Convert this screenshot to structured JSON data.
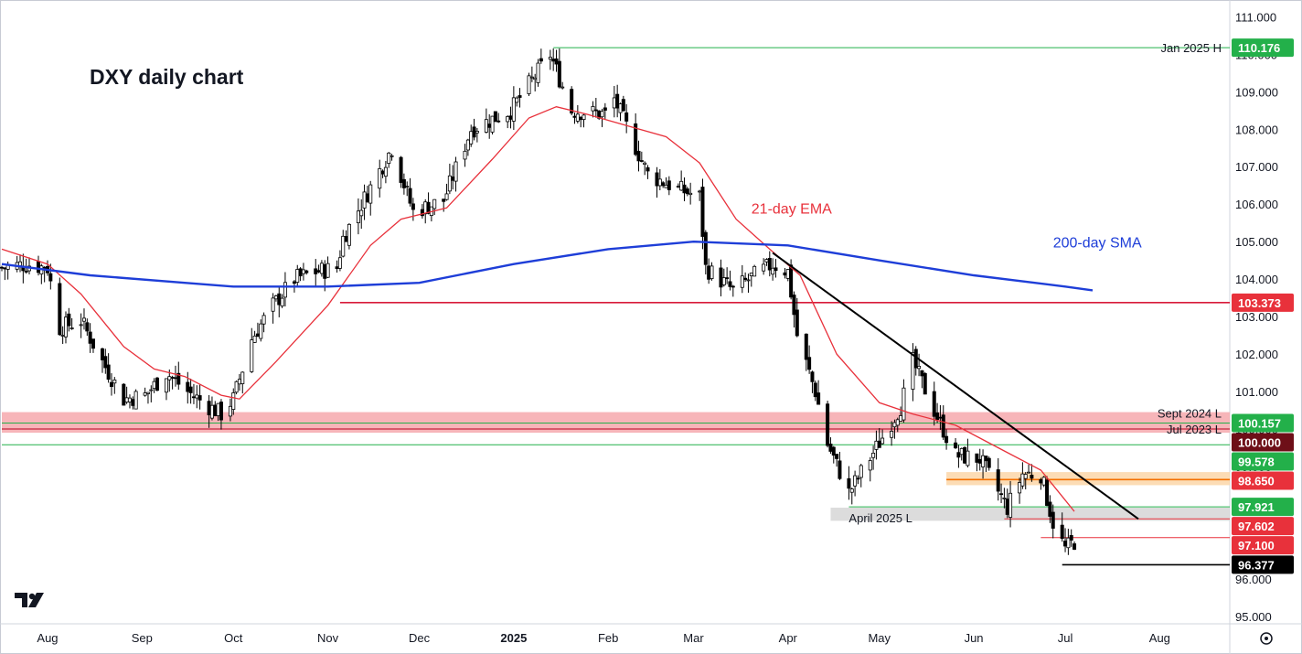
{
  "chart_data": {
    "type": "candlestick",
    "title": "DXY daily chart",
    "y_range": [
      94.8,
      111.4
    ],
    "y_ticks": [
      95,
      96,
      97,
      98,
      99,
      100,
      101,
      102,
      103,
      104,
      105,
      106,
      107,
      108,
      109,
      110,
      111
    ],
    "y_tick_labels": [
      "95.000",
      "96.000",
      "97.000",
      "98.000",
      "99.000",
      "100.000",
      "101.000",
      "102.000",
      "103.000",
      "104.000",
      "105.000",
      "106.000",
      "107.000",
      "108.000",
      "109.000",
      "110.000",
      "111.000"
    ],
    "x_range": [
      "2024-07-17",
      "2025-08-24"
    ],
    "x_ticks": [
      {
        "date": "2024-08-01",
        "label": "Aug",
        "bold": false
      },
      {
        "date": "2024-09-01",
        "label": "Sep",
        "bold": false
      },
      {
        "date": "2024-10-01",
        "label": "Oct",
        "bold": false
      },
      {
        "date": "2024-11-01",
        "label": "Nov",
        "bold": false
      },
      {
        "date": "2024-12-01",
        "label": "Dec",
        "bold": false
      },
      {
        "date": "2025-01-01",
        "label": "2025",
        "bold": true
      },
      {
        "date": "2025-02-01",
        "label": "Feb",
        "bold": false
      },
      {
        "date": "2025-03-01",
        "label": "Mar",
        "bold": false
      },
      {
        "date": "2025-04-01",
        "label": "Apr",
        "bold": false
      },
      {
        "date": "2025-05-01",
        "label": "May",
        "bold": false
      },
      {
        "date": "2025-06-01",
        "label": "Jun",
        "bold": false
      },
      {
        "date": "2025-07-01",
        "label": "Jul",
        "bold": false
      },
      {
        "date": "2025-08-01",
        "label": "Aug",
        "bold": false
      }
    ],
    "close_path": [
      [
        "2024-07-17",
        104.3
      ],
      [
        "2024-07-25",
        104.4
      ],
      [
        "2024-08-01",
        104.3
      ],
      [
        "2024-08-05",
        102.7
      ],
      [
        "2024-08-12",
        102.9
      ],
      [
        "2024-08-19",
        101.8
      ],
      [
        "2024-08-26",
        100.8
      ],
      [
        "2024-09-02",
        100.9
      ],
      [
        "2024-09-09",
        101.5
      ],
      [
        "2024-09-16",
        101.0
      ],
      [
        "2024-09-23",
        100.6
      ],
      [
        "2024-09-27",
        100.4
      ],
      [
        "2024-10-01",
        100.8
      ],
      [
        "2024-10-07",
        102.4
      ],
      [
        "2024-10-14",
        103.3
      ],
      [
        "2024-10-21",
        104.0
      ],
      [
        "2024-10-28",
        104.2
      ],
      [
        "2024-11-04",
        104.3
      ],
      [
        "2024-11-06",
        105.1
      ],
      [
        "2024-11-12",
        106.0
      ],
      [
        "2024-11-22",
        107.5
      ],
      [
        "2024-11-29",
        105.8
      ],
      [
        "2024-12-09",
        106.1
      ],
      [
        "2024-12-18",
        108.0
      ],
      [
        "2024-12-31",
        108.5
      ],
      [
        "2025-01-13",
        110.0
      ],
      [
        "2025-01-20",
        108.5
      ],
      [
        "2025-01-31",
        108.4
      ],
      [
        "2025-02-03",
        108.8
      ],
      [
        "2025-02-14",
        106.8
      ],
      [
        "2025-02-24",
        106.4
      ],
      [
        "2025-03-03",
        106.2
      ],
      [
        "2025-03-05",
        104.3
      ],
      [
        "2025-03-14",
        103.7
      ],
      [
        "2025-03-21",
        104.1
      ],
      [
        "2025-03-27",
        104.4
      ],
      [
        "2025-04-01",
        104.2
      ],
      [
        "2025-04-04",
        102.5
      ],
      [
        "2025-04-10",
        101.0
      ],
      [
        "2025-04-14",
        99.6
      ],
      [
        "2025-04-21",
        98.3
      ],
      [
        "2025-04-30",
        99.5
      ],
      [
        "2025-05-08",
        100.6
      ],
      [
        "2025-05-12",
        101.8
      ],
      [
        "2025-05-19",
        100.5
      ],
      [
        "2025-05-26",
        99.3
      ],
      [
        "2025-06-03",
        99.2
      ],
      [
        "2025-06-12",
        97.9
      ],
      [
        "2025-06-17",
        98.8
      ],
      [
        "2025-06-23",
        98.8
      ],
      [
        "2025-06-27",
        97.5
      ],
      [
        "2025-07-01",
        96.8
      ],
      [
        "2025-07-04",
        97.0
      ]
    ],
    "series": [
      {
        "name": "21-day EMA",
        "color": "#e8313b",
        "points": [
          [
            "2024-07-17",
            104.8
          ],
          [
            "2024-08-01",
            104.4
          ],
          [
            "2024-08-12",
            103.6
          ],
          [
            "2024-08-26",
            102.2
          ],
          [
            "2024-09-05",
            101.6
          ],
          [
            "2024-09-15",
            101.4
          ],
          [
            "2024-09-27",
            100.9
          ],
          [
            "2024-10-03",
            100.8
          ],
          [
            "2024-10-15",
            101.8
          ],
          [
            "2024-11-01",
            103.3
          ],
          [
            "2024-11-15",
            104.9
          ],
          [
            "2024-11-25",
            105.6
          ],
          [
            "2024-12-10",
            105.9
          ],
          [
            "2024-12-25",
            107.2
          ],
          [
            "2025-01-06",
            108.3
          ],
          [
            "2025-01-15",
            108.6
          ],
          [
            "2025-01-25",
            108.4
          ],
          [
            "2025-02-07",
            108.1
          ],
          [
            "2025-02-20",
            107.8
          ],
          [
            "2025-03-03",
            107.1
          ],
          [
            "2025-03-15",
            105.6
          ],
          [
            "2025-03-26",
            104.8
          ],
          [
            "2025-04-05",
            104.1
          ],
          [
            "2025-04-17",
            102.0
          ],
          [
            "2025-05-01",
            100.7
          ],
          [
            "2025-05-12",
            100.4
          ],
          [
            "2025-05-26",
            100.1
          ],
          [
            "2025-06-09",
            99.5
          ],
          [
            "2025-06-23",
            98.9
          ],
          [
            "2025-06-30",
            98.2
          ],
          [
            "2025-07-04",
            97.8
          ]
        ]
      },
      {
        "name": "200-day SMA",
        "color": "#1e3ed8",
        "points": [
          [
            "2024-07-17",
            104.4
          ],
          [
            "2024-08-15",
            104.1
          ],
          [
            "2024-09-15",
            103.9
          ],
          [
            "2024-10-01",
            103.8
          ],
          [
            "2024-11-01",
            103.8
          ],
          [
            "2024-12-01",
            103.9
          ],
          [
            "2025-01-01",
            104.4
          ],
          [
            "2025-02-01",
            104.8
          ],
          [
            "2025-03-01",
            105.0
          ],
          [
            "2025-04-01",
            104.9
          ],
          [
            "2025-05-01",
            104.5
          ],
          [
            "2025-06-01",
            104.1
          ],
          [
            "2025-07-01",
            103.8
          ],
          [
            "2025-07-10",
            103.7
          ]
        ]
      }
    ],
    "levels": [
      {
        "label": "Jan 2025 H",
        "value": 110.176,
        "badge": "110.176",
        "badge_color": "#23b04a",
        "line_color": "#23b04a",
        "from": "2025-01-14"
      },
      {
        "label": "",
        "value": 103.373,
        "badge": "103.373",
        "badge_color": "#e8313b",
        "line_color": "#d81b3a",
        "from": "2024-11-05"
      },
      {
        "label": "Sept 2024 L",
        "value": 100.157,
        "badge": "100.157",
        "badge_color": "#23b04a",
        "line_color": "#23b04a",
        "from": "2024-07-17"
      },
      {
        "label": "Jul 2023 L",
        "value": 100.0,
        "badge": "100.000",
        "badge_color": "#6e0f18",
        "line_color": "#b7001e",
        "from": "2024-07-17"
      },
      {
        "label": "",
        "value": 99.578,
        "badge": "99.578",
        "badge_color": "#23b04a",
        "line_color": "#23b04a",
        "from": "2024-07-17"
      },
      {
        "label": "",
        "value": 98.65,
        "badge": "98.650",
        "badge_color": "#e8313b",
        "line_color": "#f46f00",
        "from": "2025-05-23"
      },
      {
        "label": "",
        "value": 97.921,
        "badge": "97.921",
        "badge_color": "#23b04a",
        "line_color": "#23b04a",
        "from": "2025-04-21"
      },
      {
        "label": "April 2025 L",
        "value": 97.602,
        "badge": "97.602",
        "badge_color": "#e8313b",
        "line_color": "#e8313b",
        "from": "2025-06-11"
      },
      {
        "label": "",
        "value": 97.1,
        "badge": "97.100",
        "badge_color": "#e8313b",
        "line_color": "#e8313b",
        "from": "2025-06-23"
      },
      {
        "label": "",
        "value": 96.377,
        "badge": "96.377",
        "badge_color": "#000000",
        "line_color": "#000000",
        "from": "2025-06-30"
      }
    ],
    "zones": [
      {
        "from_value": 99.9,
        "to_value": 100.45,
        "from_date": "2024-07-17",
        "color": "#f6a8ad"
      },
      {
        "from_value": 98.5,
        "to_value": 98.85,
        "from_date": "2025-05-23",
        "color": "#fcd6a8"
      },
      {
        "from_value": 97.55,
        "to_value": 97.9,
        "from_date": "2025-04-15",
        "color": "#d6d6d6"
      }
    ],
    "trendline": {
      "from": [
        "2025-03-27",
        104.7
      ],
      "to": [
        "2025-07-25",
        97.6
      ],
      "color": "#000000"
    },
    "annotations": [
      {
        "text": "21-day EMA",
        "color": "#e8313b",
        "date": "2025-03-20",
        "value": 105.75
      },
      {
        "text": "200-day SMA",
        "color": "#1e3ed8",
        "date": "2025-06-27",
        "value": 104.85
      }
    ],
    "grid": false,
    "legend": "none"
  },
  "ui": {
    "logo_text": "TV",
    "settings_icon": "gear-icon"
  }
}
